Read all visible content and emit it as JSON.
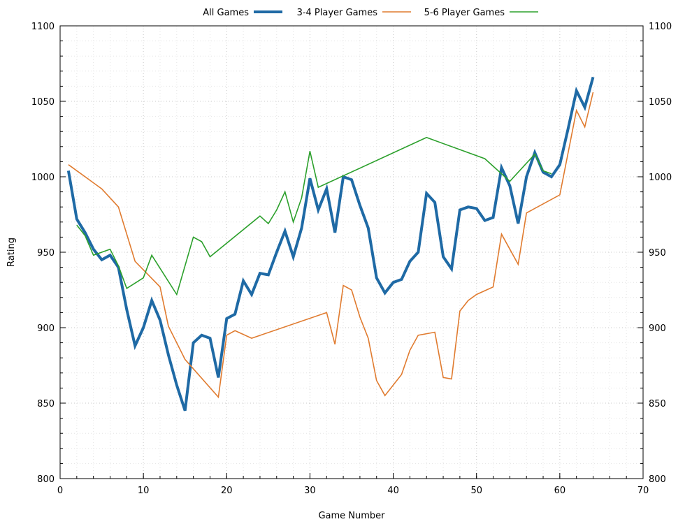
{
  "chart_data": {
    "type": "line",
    "xlabel": "Game Number",
    "ylabel": "Rating",
    "xlim": [
      0,
      70
    ],
    "ylim": [
      800,
      1100
    ],
    "xticks": [
      0,
      10,
      20,
      30,
      40,
      50,
      60,
      70
    ],
    "yticks": [
      800,
      850,
      900,
      950,
      1000,
      1050,
      1100
    ],
    "grid": "dotted major and minor",
    "legend_position": "top",
    "y_axis_mirrored_right": true,
    "series": [
      {
        "name": "All Games",
        "color": "#1f6aa5",
        "width": 4,
        "points": [
          [
            1,
            1004
          ],
          [
            2,
            972
          ],
          [
            3,
            963
          ],
          [
            4,
            952
          ],
          [
            5,
            945
          ],
          [
            6,
            948
          ],
          [
            7,
            940
          ],
          [
            8,
            912
          ],
          [
            9,
            888
          ],
          [
            10,
            900
          ],
          [
            11,
            918
          ],
          [
            12,
            905
          ],
          [
            13,
            882
          ],
          [
            14,
            862
          ],
          [
            15,
            845
          ],
          [
            16,
            890
          ],
          [
            17,
            895
          ],
          [
            18,
            893
          ],
          [
            19,
            867
          ],
          [
            20,
            906
          ],
          [
            21,
            909
          ],
          [
            22,
            931
          ],
          [
            23,
            922
          ],
          [
            24,
            936
          ],
          [
            25,
            935
          ],
          [
            26,
            950
          ],
          [
            27,
            964
          ],
          [
            28,
            947
          ],
          [
            29,
            966
          ],
          [
            30,
            999
          ],
          [
            31,
            978
          ],
          [
            32,
            992
          ],
          [
            33,
            963
          ],
          [
            34,
            1000
          ],
          [
            35,
            998
          ],
          [
            36,
            981
          ],
          [
            37,
            966
          ],
          [
            38,
            933
          ],
          [
            39,
            923
          ],
          [
            40,
            930
          ],
          [
            41,
            932
          ],
          [
            42,
            944
          ],
          [
            43,
            950
          ],
          [
            44,
            989
          ],
          [
            45,
            983
          ],
          [
            46,
            947
          ],
          [
            47,
            939
          ],
          [
            48,
            978
          ],
          [
            49,
            980
          ],
          [
            50,
            979
          ],
          [
            51,
            971
          ],
          [
            52,
            973
          ],
          [
            53,
            1006
          ],
          [
            54,
            994
          ],
          [
            55,
            969
          ],
          [
            56,
            1000
          ],
          [
            57,
            1016
          ],
          [
            58,
            1003
          ],
          [
            59,
            1000
          ],
          [
            60,
            1008
          ],
          [
            61,
            1032
          ],
          [
            62,
            1057
          ],
          [
            63,
            1046
          ],
          [
            64,
            1066
          ]
        ]
      },
      {
        "name": "3-4 Player Games",
        "color": "#e07b2f",
        "width": 1.6,
        "points": [
          [
            1,
            1008
          ],
          [
            5,
            992
          ],
          [
            7,
            980
          ],
          [
            9,
            944
          ],
          [
            12,
            927
          ],
          [
            13,
            901
          ],
          [
            15,
            879
          ],
          [
            19,
            854
          ],
          [
            20,
            895
          ],
          [
            21,
            898
          ],
          [
            23,
            893
          ],
          [
            32,
            910
          ],
          [
            33,
            889
          ],
          [
            34,
            928
          ],
          [
            35,
            925
          ],
          [
            36,
            907
          ],
          [
            37,
            893
          ],
          [
            38,
            865
          ],
          [
            39,
            855
          ],
          [
            41,
            869
          ],
          [
            42,
            885
          ],
          [
            43,
            895
          ],
          [
            45,
            897
          ],
          [
            46,
            867
          ],
          [
            47,
            866
          ],
          [
            48,
            911
          ],
          [
            49,
            918
          ],
          [
            50,
            922
          ],
          [
            52,
            927
          ],
          [
            53,
            962
          ],
          [
            55,
            942
          ],
          [
            56,
            976
          ],
          [
            60,
            988
          ],
          [
            62,
            1044
          ],
          [
            63,
            1033
          ],
          [
            64,
            1056
          ]
        ]
      },
      {
        "name": "5-6 Player Games",
        "color": "#2ca02c",
        "width": 1.6,
        "points": [
          [
            2,
            968
          ],
          [
            3,
            961
          ],
          [
            4,
            948
          ],
          [
            6,
            952
          ],
          [
            7,
            941
          ],
          [
            8,
            926
          ],
          [
            10,
            933
          ],
          [
            11,
            948
          ],
          [
            14,
            922
          ],
          [
            16,
            960
          ],
          [
            17,
            957
          ],
          [
            18,
            947
          ],
          [
            24,
            974
          ],
          [
            25,
            969
          ],
          [
            26,
            978
          ],
          [
            27,
            990
          ],
          [
            28,
            970
          ],
          [
            29,
            986
          ],
          [
            30,
            1017
          ],
          [
            31,
            993
          ],
          [
            44,
            1026
          ],
          [
            51,
            1012
          ],
          [
            54,
            997
          ],
          [
            57,
            1015
          ],
          [
            58,
            1004
          ],
          [
            59,
            1002
          ]
        ]
      }
    ]
  }
}
